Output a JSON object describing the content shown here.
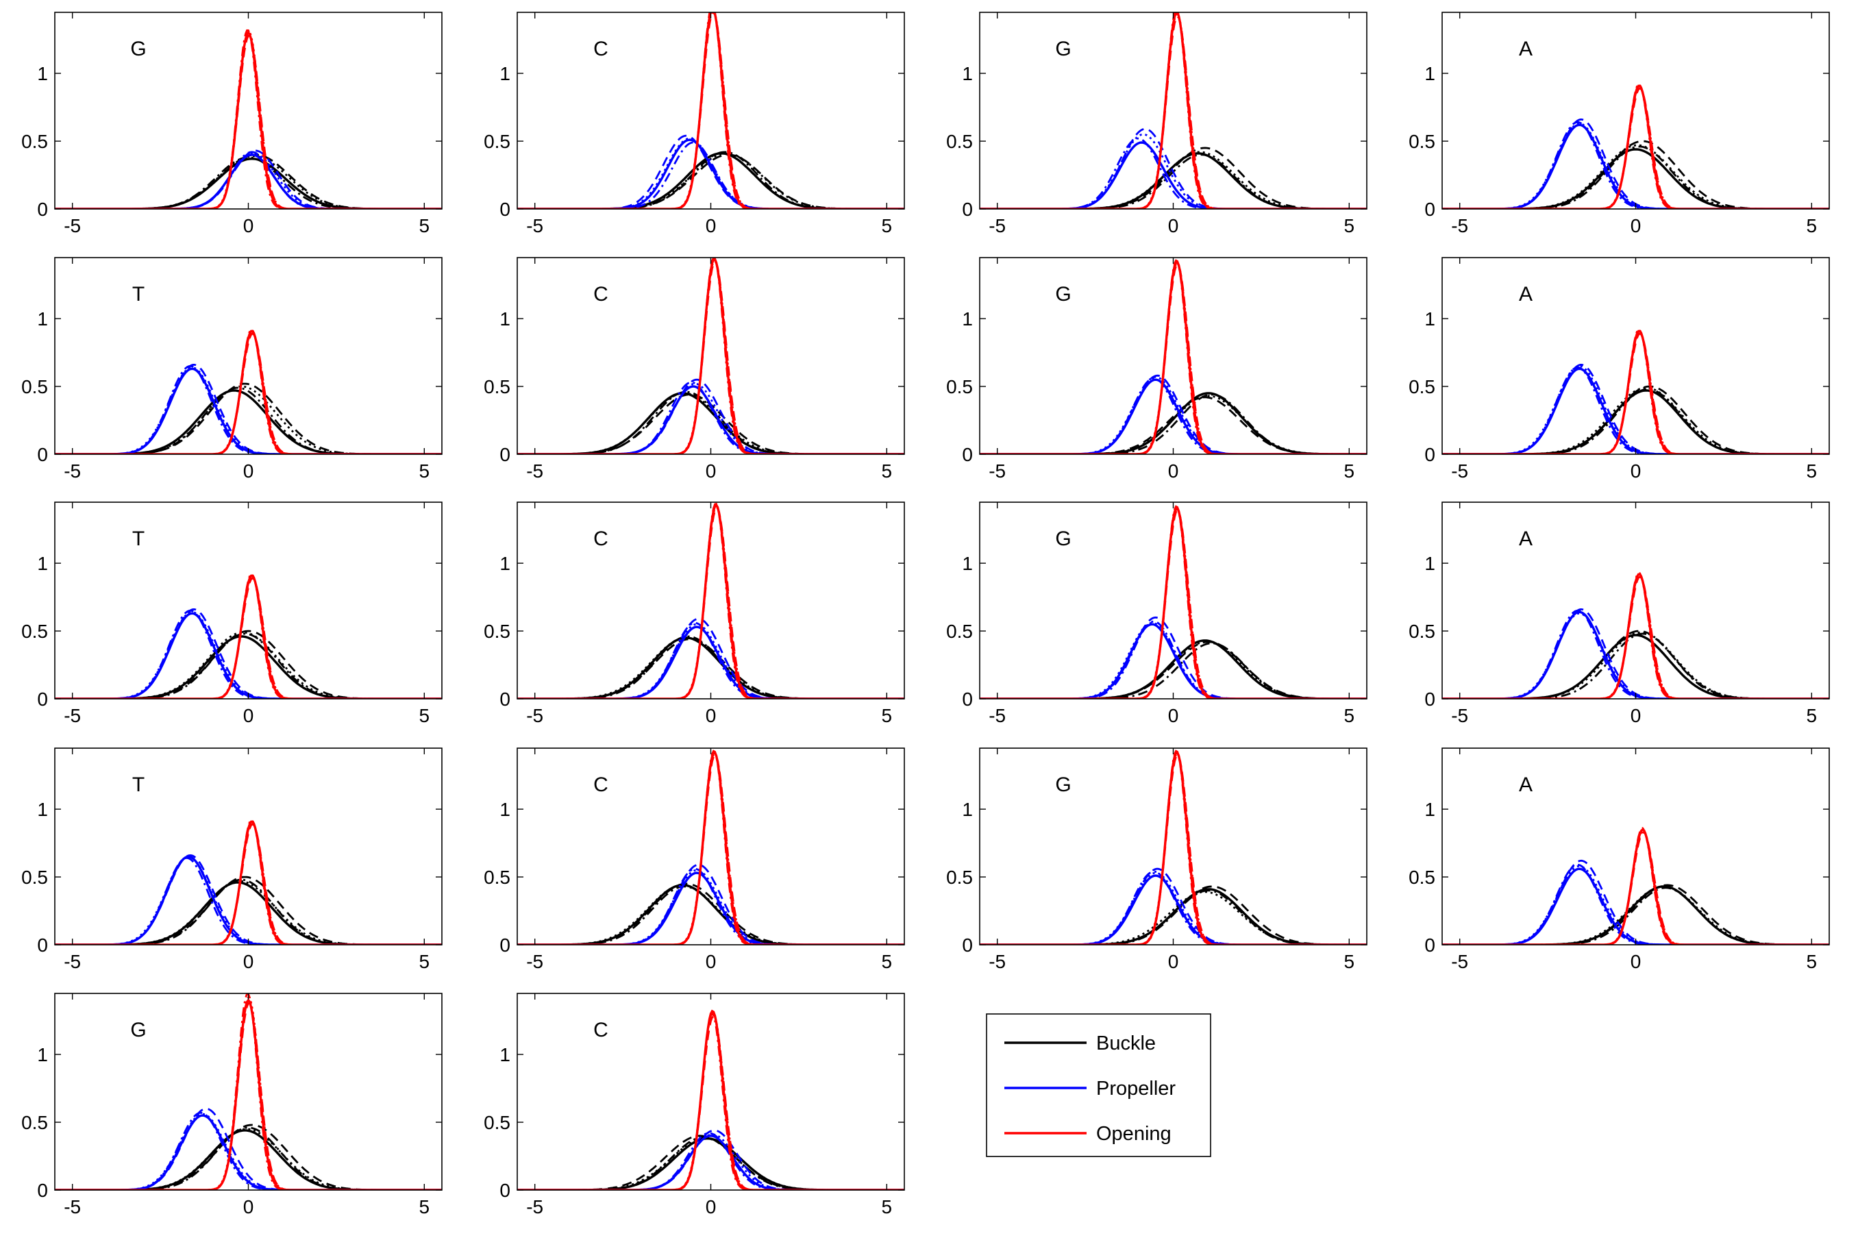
{
  "chart_data": {
    "type": "line",
    "xlim": [
      -5.5,
      5.5
    ],
    "ylim": [
      0,
      1.45
    ],
    "x_ticks": [
      -5,
      0,
      5
    ],
    "y_ticks": [
      0,
      0.5,
      1
    ],
    "grid": false,
    "legend": {
      "placement": "bottom-right",
      "entries": [
        {
          "name": "Buckle",
          "color": "#000000"
        },
        {
          "name": "Propeller",
          "color": "#0000ff"
        },
        {
          "name": "Opening",
          "color": "#ff0000"
        }
      ]
    },
    "line_styles": [
      "solid",
      "dashed",
      "dashdot",
      "dotted"
    ],
    "panels": [
      {
        "label": "G",
        "series": [
          {
            "name": "Buckle",
            "mu": [
              0.1,
              0.2,
              0.0,
              0.15
            ],
            "peak": [
              0.37,
              0.4,
              0.38,
              0.39
            ]
          },
          {
            "name": "Propeller",
            "mu": [
              0.1,
              0.2,
              0.1,
              0.15
            ],
            "peak": [
              0.4,
              0.43,
              0.42,
              0.41
            ]
          },
          {
            "name": "Opening",
            "mu": [
              0.0,
              0.02,
              -0.02,
              0.01
            ],
            "peak": [
              1.3,
              1.28,
              1.32,
              1.31
            ]
          }
        ]
      },
      {
        "label": "C",
        "series": [
          {
            "name": "Buckle",
            "mu": [
              0.3,
              0.5,
              0.4,
              0.45
            ],
            "peak": [
              0.41,
              0.4,
              0.42,
              0.41
            ]
          },
          {
            "name": "Propeller",
            "mu": [
              -0.6,
              -0.7,
              -0.5,
              -0.6
            ],
            "peak": [
              0.51,
              0.54,
              0.49,
              0.52
            ]
          },
          {
            "name": "Opening",
            "mu": [
              0.05,
              0.07,
              0.04,
              0.06
            ],
            "peak": [
              1.48,
              1.45,
              1.5,
              1.47
            ]
          }
        ]
      },
      {
        "label": "G",
        "series": [
          {
            "name": "Buckle",
            "mu": [
              0.7,
              0.9,
              0.8,
              0.75
            ],
            "peak": [
              0.41,
              0.45,
              0.4,
              0.42
            ]
          },
          {
            "name": "Propeller",
            "mu": [
              -0.9,
              -0.8,
              -1.0,
              -0.85
            ],
            "peak": [
              0.49,
              0.59,
              0.52,
              0.55
            ]
          },
          {
            "name": "Opening",
            "mu": [
              0.1,
              0.12,
              0.09,
              0.11
            ],
            "peak": [
              1.45,
              1.42,
              1.47,
              1.44
            ]
          }
        ]
      },
      {
        "label": "A",
        "series": [
          {
            "name": "Buckle",
            "mu": [
              0.0,
              0.2,
              0.1,
              0.05
            ],
            "peak": [
              0.44,
              0.5,
              0.46,
              0.47
            ]
          },
          {
            "name": "Propeller",
            "mu": [
              -1.6,
              -1.55,
              -1.65,
              -1.6
            ],
            "peak": [
              0.62,
              0.66,
              0.64,
              0.63
            ]
          },
          {
            "name": "Opening",
            "mu": [
              0.1,
              0.12,
              0.09,
              0.11
            ],
            "peak": [
              0.91,
              0.89,
              0.92,
              0.9
            ]
          }
        ]
      },
      {
        "label": "T",
        "series": [
          {
            "name": "Buckle",
            "mu": [
              -0.4,
              -0.1,
              -0.3,
              -0.2
            ],
            "peak": [
              0.47,
              0.52,
              0.49,
              0.5
            ]
          },
          {
            "name": "Propeller",
            "mu": [
              -1.6,
              -1.55,
              -1.65,
              -1.6
            ],
            "peak": [
              0.63,
              0.66,
              0.65,
              0.64
            ]
          },
          {
            "name": "Opening",
            "mu": [
              0.1,
              0.12,
              0.09,
              0.11
            ],
            "peak": [
              0.91,
              0.89,
              0.92,
              0.9
            ]
          }
        ]
      },
      {
        "label": "C",
        "series": [
          {
            "name": "Buckle",
            "mu": [
              -0.8,
              -0.6,
              -0.7,
              -0.75
            ],
            "peak": [
              0.45,
              0.44,
              0.46,
              0.45
            ]
          },
          {
            "name": "Propeller",
            "mu": [
              -0.5,
              -0.4,
              -0.55,
              -0.45
            ],
            "peak": [
              0.5,
              0.55,
              0.53,
              0.52
            ]
          },
          {
            "name": "Opening",
            "mu": [
              0.1,
              0.12,
              0.09,
              0.11
            ],
            "peak": [
              1.44,
              1.42,
              1.45,
              1.43
            ]
          }
        ]
      },
      {
        "label": "G",
        "series": [
          {
            "name": "Buckle",
            "mu": [
              1.0,
              0.9,
              1.1,
              1.0
            ],
            "peak": [
              0.45,
              0.42,
              0.44,
              0.43
            ]
          },
          {
            "name": "Propeller",
            "mu": [
              -0.5,
              -0.45,
              -0.55,
              -0.5
            ],
            "peak": [
              0.55,
              0.58,
              0.56,
              0.57
            ]
          },
          {
            "name": "Opening",
            "mu": [
              0.1,
              0.12,
              0.09,
              0.11
            ],
            "peak": [
              1.42,
              1.4,
              1.43,
              1.41
            ]
          }
        ]
      },
      {
        "label": "A",
        "series": [
          {
            "name": "Buckle",
            "mu": [
              0.3,
              0.4,
              0.35,
              0.3
            ],
            "peak": [
              0.47,
              0.5,
              0.48,
              0.49
            ]
          },
          {
            "name": "Propeller",
            "mu": [
              -1.6,
              -1.55,
              -1.65,
              -1.6
            ],
            "peak": [
              0.63,
              0.66,
              0.64,
              0.65
            ]
          },
          {
            "name": "Opening",
            "mu": [
              0.1,
              0.12,
              0.09,
              0.11
            ],
            "peak": [
              0.91,
              0.89,
              0.92,
              0.9
            ]
          }
        ]
      },
      {
        "label": "T",
        "series": [
          {
            "name": "Buckle",
            "mu": [
              -0.2,
              0.0,
              -0.1,
              -0.15
            ],
            "peak": [
              0.46,
              0.5,
              0.48,
              0.49
            ]
          },
          {
            "name": "Propeller",
            "mu": [
              -1.6,
              -1.55,
              -1.65,
              -1.6
            ],
            "peak": [
              0.63,
              0.66,
              0.65,
              0.64
            ]
          },
          {
            "name": "Opening",
            "mu": [
              0.1,
              0.12,
              0.09,
              0.11
            ],
            "peak": [
              0.91,
              0.89,
              0.92,
              0.9
            ]
          }
        ]
      },
      {
        "label": "C",
        "series": [
          {
            "name": "Buckle",
            "mu": [
              -0.7,
              -0.6,
              -0.65,
              -0.7
            ],
            "peak": [
              0.45,
              0.44,
              0.46,
              0.45
            ]
          },
          {
            "name": "Propeller",
            "mu": [
              -0.4,
              -0.35,
              -0.45,
              -0.4
            ],
            "peak": [
              0.53,
              0.59,
              0.56,
              0.55
            ]
          },
          {
            "name": "Opening",
            "mu": [
              0.15,
              0.17,
              0.14,
              0.16
            ],
            "peak": [
              1.43,
              1.41,
              1.44,
              1.42
            ]
          }
        ]
      },
      {
        "label": "G",
        "series": [
          {
            "name": "Buckle",
            "mu": [
              0.9,
              1.0,
              1.1,
              0.95
            ],
            "peak": [
              0.43,
              0.42,
              0.41,
              0.42
            ]
          },
          {
            "name": "Propeller",
            "mu": [
              -0.6,
              -0.5,
              -0.55,
              -0.6
            ],
            "peak": [
              0.55,
              0.6,
              0.57,
              0.56
            ]
          },
          {
            "name": "Opening",
            "mu": [
              0.1,
              0.12,
              0.09,
              0.11
            ],
            "peak": [
              1.41,
              1.39,
              1.42,
              1.4
            ]
          }
        ]
      },
      {
        "label": "A",
        "series": [
          {
            "name": "Buckle",
            "mu": [
              0.0,
              0.1,
              0.2,
              0.15
            ],
            "peak": [
              0.47,
              0.5,
              0.48,
              0.49
            ]
          },
          {
            "name": "Propeller",
            "mu": [
              -1.6,
              -1.55,
              -1.65,
              -1.6
            ],
            "peak": [
              0.64,
              0.66,
              0.65,
              0.63
            ]
          },
          {
            "name": "Opening",
            "mu": [
              0.1,
              0.12,
              0.09,
              0.11
            ],
            "peak": [
              0.92,
              0.9,
              0.93,
              0.91
            ]
          }
        ]
      },
      {
        "label": "T",
        "series": [
          {
            "name": "Buckle",
            "mu": [
              -0.3,
              -0.1,
              -0.2,
              -0.25
            ],
            "peak": [
              0.46,
              0.5,
              0.48,
              0.47
            ]
          },
          {
            "name": "Propeller",
            "mu": [
              -1.7,
              -1.65,
              -1.75,
              -1.7
            ],
            "peak": [
              0.65,
              0.66,
              0.64,
              0.65
            ]
          },
          {
            "name": "Opening",
            "mu": [
              0.1,
              0.12,
              0.09,
              0.11
            ],
            "peak": [
              0.91,
              0.89,
              0.92,
              0.9
            ]
          }
        ]
      },
      {
        "label": "C",
        "series": [
          {
            "name": "Buckle",
            "mu": [
              -0.8,
              -0.7,
              -0.75,
              -0.8
            ],
            "peak": [
              0.44,
              0.45,
              0.43,
              0.44
            ]
          },
          {
            "name": "Propeller",
            "mu": [
              -0.4,
              -0.35,
              -0.45,
              -0.4
            ],
            "peak": [
              0.53,
              0.59,
              0.56,
              0.55
            ]
          },
          {
            "name": "Opening",
            "mu": [
              0.1,
              0.12,
              0.09,
              0.11
            ],
            "peak": [
              1.42,
              1.4,
              1.43,
              1.41
            ]
          }
        ]
      },
      {
        "label": "G",
        "series": [
          {
            "name": "Buckle",
            "mu": [
              1.0,
              1.1,
              1.0,
              0.9
            ],
            "peak": [
              0.41,
              0.43,
              0.4,
              0.39
            ]
          },
          {
            "name": "Propeller",
            "mu": [
              -0.5,
              -0.45,
              -0.55,
              -0.5
            ],
            "peak": [
              0.51,
              0.56,
              0.54,
              0.53
            ]
          },
          {
            "name": "Opening",
            "mu": [
              0.1,
              0.12,
              0.09,
              0.11
            ],
            "peak": [
              1.42,
              1.4,
              1.43,
              1.41
            ]
          }
        ]
      },
      {
        "label": "A",
        "series": [
          {
            "name": "Buckle",
            "mu": [
              0.8,
              0.9,
              0.85,
              0.8
            ],
            "peak": [
              0.43,
              0.44,
              0.42,
              0.43
            ]
          },
          {
            "name": "Propeller",
            "mu": [
              -1.6,
              -1.55,
              -1.65,
              -1.6
            ],
            "peak": [
              0.56,
              0.62,
              0.59,
              0.58
            ]
          },
          {
            "name": "Opening",
            "mu": [
              0.2,
              0.22,
              0.19,
              0.21
            ],
            "peak": [
              0.85,
              0.83,
              0.86,
              0.84
            ]
          }
        ]
      },
      {
        "label": "G",
        "series": [
          {
            "name": "Buckle",
            "mu": [
              -0.1,
              0.1,
              0.0,
              -0.05
            ],
            "peak": [
              0.44,
              0.48,
              0.46,
              0.45
            ]
          },
          {
            "name": "Propeller",
            "mu": [
              -1.3,
              -1.2,
              -1.35,
              -1.3
            ],
            "peak": [
              0.55,
              0.6,
              0.57,
              0.56
            ]
          },
          {
            "name": "Opening",
            "mu": [
              0.0,
              0.02,
              -0.02,
              0.01
            ],
            "peak": [
              1.4,
              1.38,
              1.45,
              1.42
            ]
          }
        ]
      },
      {
        "label": "C",
        "series": [
          {
            "name": "Buckle",
            "mu": [
              -0.1,
              -0.3,
              -0.2,
              -0.15
            ],
            "peak": [
              0.38,
              0.4,
              0.39,
              0.38
            ]
          },
          {
            "name": "Propeller",
            "mu": [
              0.0,
              0.1,
              -0.05,
              0.05
            ],
            "peak": [
              0.4,
              0.44,
              0.42,
              0.41
            ]
          },
          {
            "name": "Opening",
            "mu": [
              0.05,
              0.07,
              0.04,
              0.06
            ],
            "peak": [
              1.32,
              1.28,
              1.3,
              1.31
            ]
          }
        ]
      }
    ]
  }
}
